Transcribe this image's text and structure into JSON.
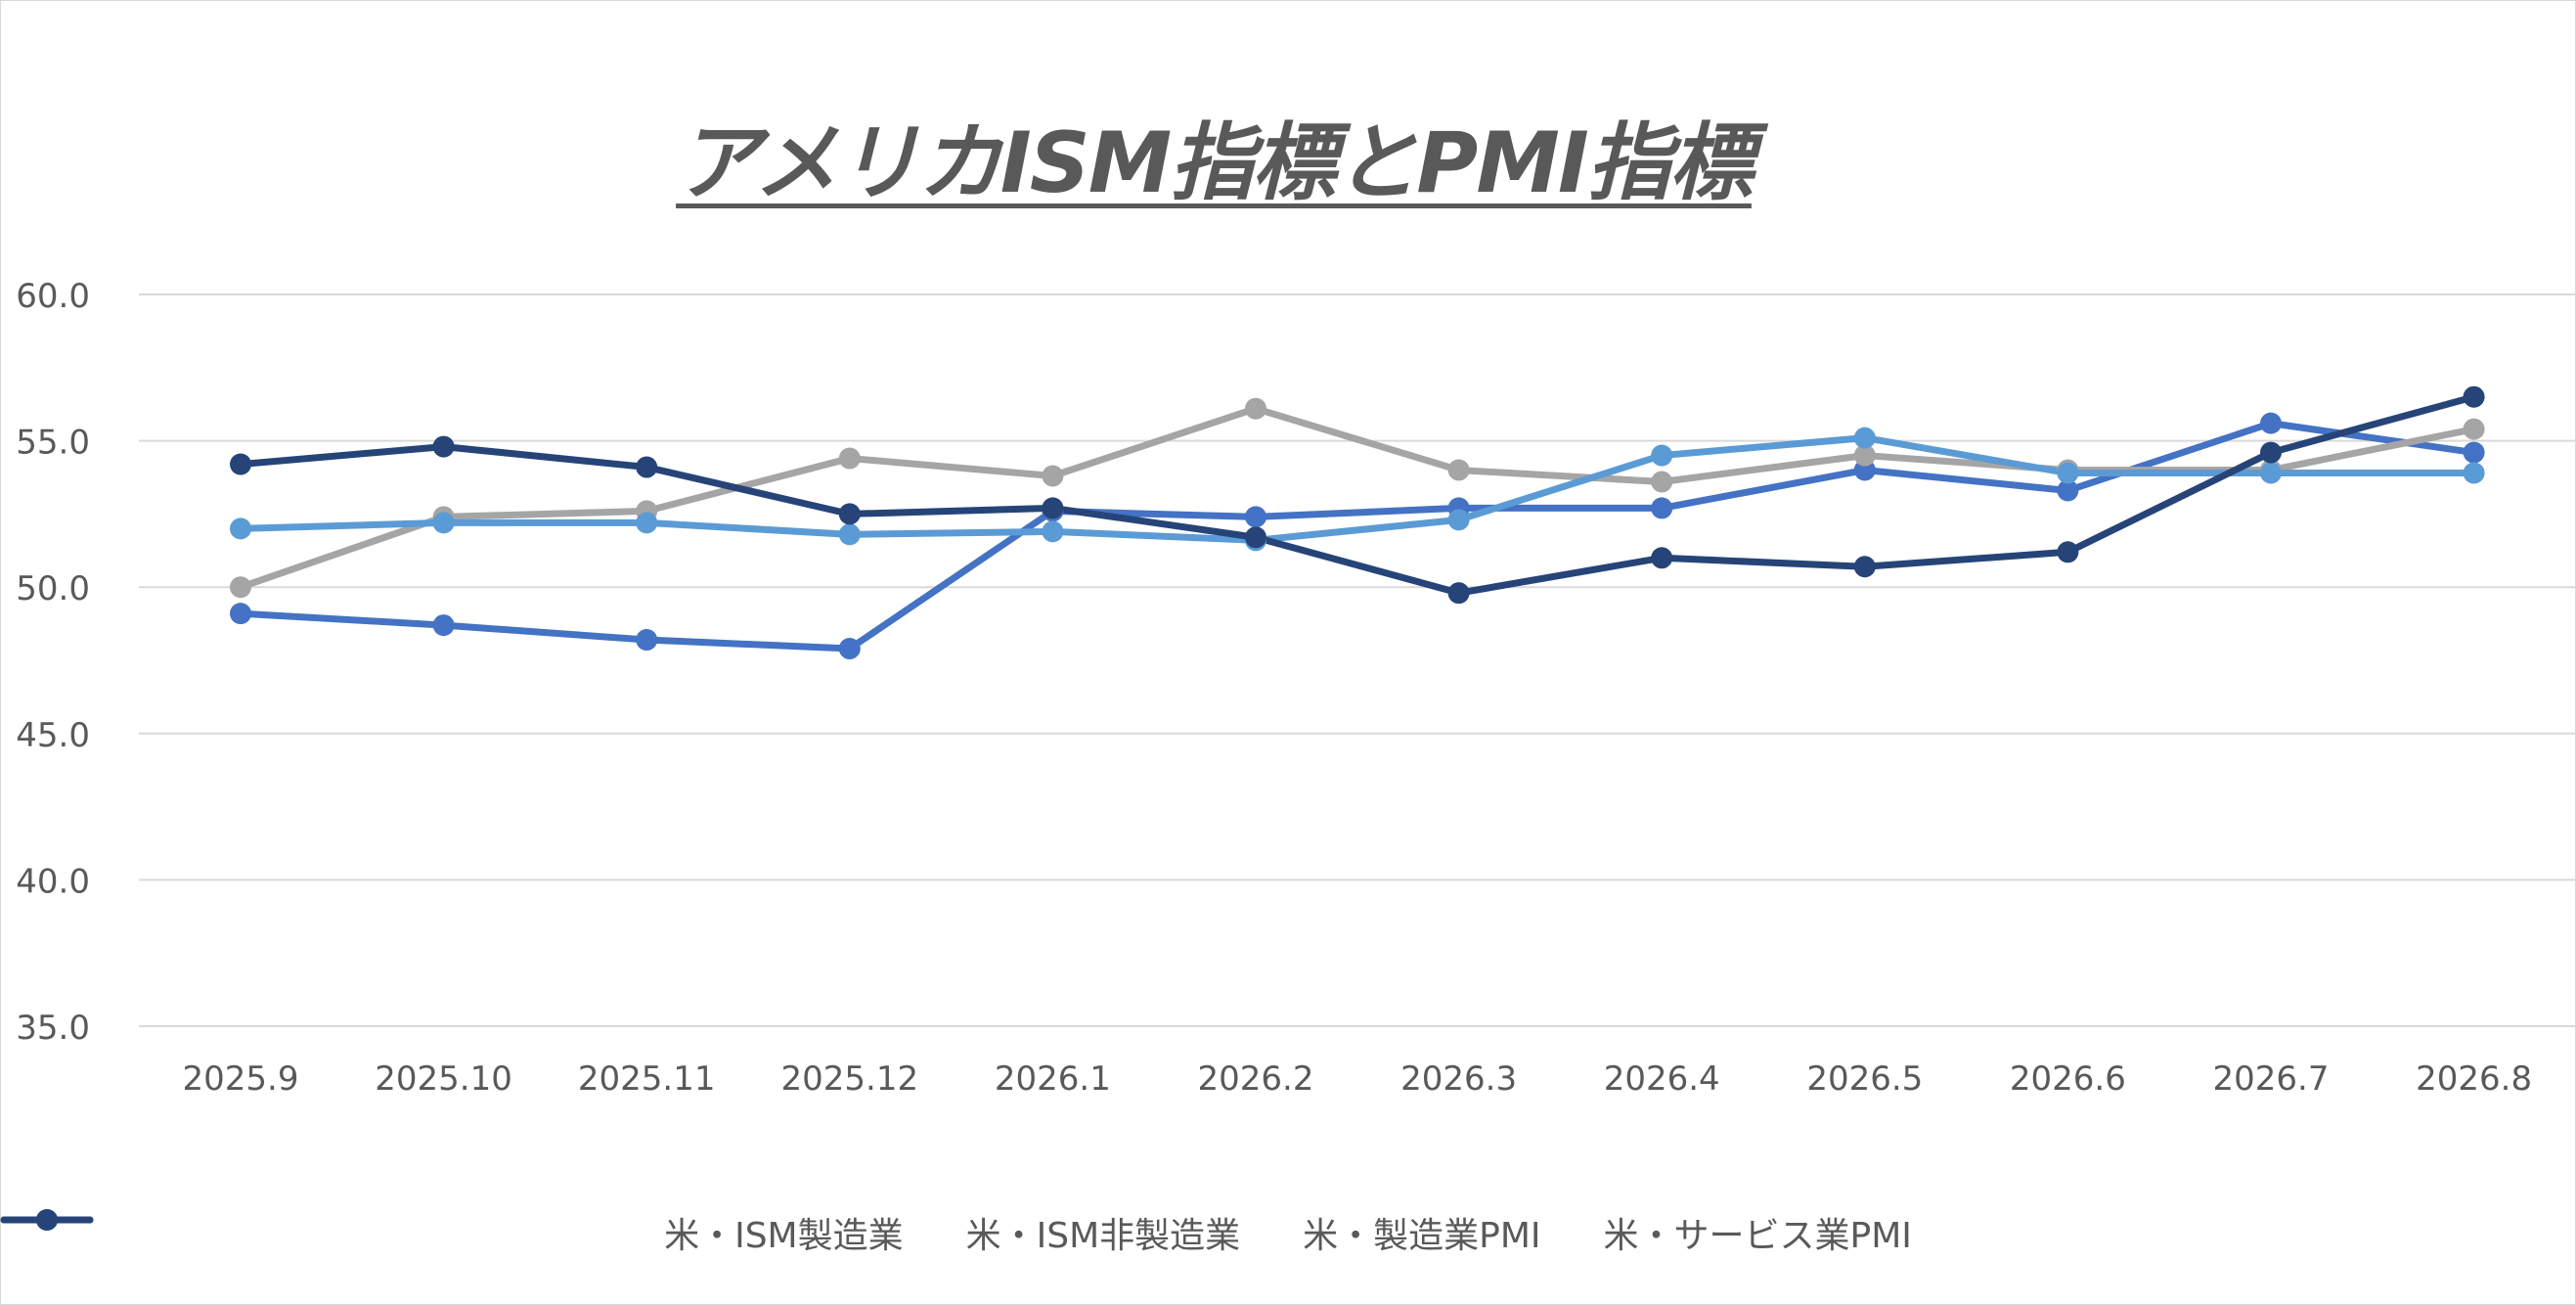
{
  "chart_data": {
    "type": "line",
    "title": "アメリカISM指標とPMI指標",
    "categories": [
      "2025.9",
      "2025.10",
      "2025.11",
      "2025.12",
      "2026.1",
      "2026.2",
      "2026.3",
      "2026.4",
      "2026.5",
      "2026.6",
      "2026.7",
      "2026.8"
    ],
    "ylim": [
      35,
      60
    ],
    "yticks": [
      "35.0",
      "40.0",
      "45.0",
      "50.0",
      "55.0",
      "60.0"
    ],
    "grid": true,
    "legend_position": "bottom",
    "series": [
      {
        "name": "米・ISM製造業",
        "color": "#4472c4",
        "values": [
          49.1,
          48.7,
          48.2,
          47.9,
          52.6,
          52.4,
          52.7,
          52.7,
          54.0,
          53.3,
          55.6,
          54.6
        ]
      },
      {
        "name": "米・ISM非製造業",
        "color": "#a5a5a5",
        "values": [
          50.0,
          52.4,
          52.6,
          54.4,
          53.8,
          56.1,
          54.0,
          53.6,
          54.5,
          54.0,
          54.0,
          55.4
        ]
      },
      {
        "name": "米・製造業PMI",
        "color": "#5b9bd5",
        "values": [
          52.0,
          52.2,
          52.2,
          51.8,
          51.9,
          51.6,
          52.3,
          54.5,
          55.1,
          53.9,
          53.9,
          53.9
        ]
      },
      {
        "name": "米・サービス業PMI",
        "color": "#264478",
        "values": [
          54.2,
          54.8,
          54.1,
          52.5,
          52.7,
          51.7,
          49.8,
          51.0,
          50.7,
          51.2,
          54.6,
          56.5
        ]
      }
    ]
  }
}
